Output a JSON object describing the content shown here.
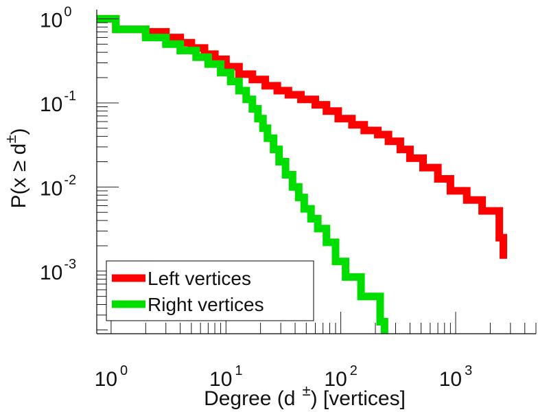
{
  "chart_data": {
    "type": "line",
    "x_scale": "log",
    "y_scale": "log",
    "xlim": [
      0.75,
      5000
    ],
    "ylim": [
      0.00018,
      1.15
    ],
    "xlabel_prefix": "Degree (d",
    "xlabel_sup": "±",
    "xlabel_suffix": ") [vertices]",
    "ylabel_prefix": "P(x ≥ d",
    "ylabel_sup": "±",
    "ylabel_suffix": ")",
    "x_ticks": [
      {
        "base": "10",
        "exp": "0",
        "value": 1
      },
      {
        "base": "10",
        "exp": "1",
        "value": 10
      },
      {
        "base": "10",
        "exp": "2",
        "value": 100
      },
      {
        "base": "10",
        "exp": "3",
        "value": 1000
      }
    ],
    "y_ticks": [
      {
        "base": "10",
        "exp": "0",
        "value": 1
      },
      {
        "base": "10",
        "exp": "-1",
        "value": 0.1
      },
      {
        "base": "10",
        "exp": "-2",
        "value": 0.01
      },
      {
        "base": "10",
        "exp": "-3",
        "value": 0.001
      }
    ],
    "legend_position": "bottom-left",
    "grid": false,
    "series": [
      {
        "name": "Left vertices",
        "color": "#ff0000",
        "points": [
          [
            0.75,
            1.0
          ],
          [
            1.1,
            1.0
          ],
          [
            1.1,
            0.75
          ],
          [
            2.0,
            0.75
          ],
          [
            2.0,
            0.7
          ],
          [
            3.0,
            0.7
          ],
          [
            3.0,
            0.6
          ],
          [
            4.0,
            0.6
          ],
          [
            4.0,
            0.52
          ],
          [
            5.0,
            0.52
          ],
          [
            5.0,
            0.45
          ],
          [
            6.5,
            0.45
          ],
          [
            6.5,
            0.38
          ],
          [
            8.0,
            0.38
          ],
          [
            8.0,
            0.33
          ],
          [
            10,
            0.33
          ],
          [
            10,
            0.27
          ],
          [
            13,
            0.27
          ],
          [
            13,
            0.22
          ],
          [
            17,
            0.22
          ],
          [
            17,
            0.19
          ],
          [
            22,
            0.19
          ],
          [
            22,
            0.16
          ],
          [
            28,
            0.16
          ],
          [
            28,
            0.14
          ],
          [
            35,
            0.14
          ],
          [
            35,
            0.125
          ],
          [
            45,
            0.125
          ],
          [
            45,
            0.11
          ],
          [
            60,
            0.11
          ],
          [
            60,
            0.095
          ],
          [
            75,
            0.095
          ],
          [
            75,
            0.08
          ],
          [
            95,
            0.08
          ],
          [
            95,
            0.065
          ],
          [
            125,
            0.065
          ],
          [
            125,
            0.055
          ],
          [
            160,
            0.055
          ],
          [
            160,
            0.047
          ],
          [
            210,
            0.047
          ],
          [
            210,
            0.042
          ],
          [
            260,
            0.042
          ],
          [
            260,
            0.035
          ],
          [
            330,
            0.035
          ],
          [
            330,
            0.028
          ],
          [
            400,
            0.028
          ],
          [
            400,
            0.022
          ],
          [
            520,
            0.022
          ],
          [
            520,
            0.017
          ],
          [
            700,
            0.017
          ],
          [
            700,
            0.0125
          ],
          [
            900,
            0.0125
          ],
          [
            900,
            0.009
          ],
          [
            1250,
            0.009
          ],
          [
            1250,
            0.007
          ],
          [
            1700,
            0.007
          ],
          [
            1700,
            0.0052
          ],
          [
            2400,
            0.0052
          ],
          [
            2400,
            0.0025
          ],
          [
            2600,
            0.0025
          ],
          [
            2600,
            0.0014
          ]
        ]
      },
      {
        "name": "Right vertices",
        "color": "#00dd00",
        "points": [
          [
            0.75,
            1.0
          ],
          [
            1.1,
            1.0
          ],
          [
            1.1,
            0.75
          ],
          [
            2.0,
            0.75
          ],
          [
            2.0,
            0.6
          ],
          [
            3.0,
            0.6
          ],
          [
            3.0,
            0.5
          ],
          [
            4.0,
            0.5
          ],
          [
            4.0,
            0.42
          ],
          [
            5.5,
            0.42
          ],
          [
            5.5,
            0.35
          ],
          [
            7.0,
            0.35
          ],
          [
            7.0,
            0.29
          ],
          [
            9.0,
            0.29
          ],
          [
            9.0,
            0.23
          ],
          [
            11,
            0.23
          ],
          [
            11,
            0.18
          ],
          [
            13,
            0.18
          ],
          [
            13,
            0.14
          ],
          [
            15,
            0.14
          ],
          [
            15,
            0.11
          ],
          [
            17,
            0.11
          ],
          [
            17,
            0.085
          ],
          [
            19,
            0.085
          ],
          [
            19,
            0.065
          ],
          [
            21,
            0.065
          ],
          [
            21,
            0.05
          ],
          [
            23,
            0.05
          ],
          [
            23,
            0.038
          ],
          [
            26,
            0.038
          ],
          [
            26,
            0.028
          ],
          [
            29,
            0.028
          ],
          [
            29,
            0.02
          ],
          [
            33,
            0.02
          ],
          [
            33,
            0.014
          ],
          [
            38,
            0.014
          ],
          [
            38,
            0.01
          ],
          [
            43,
            0.01
          ],
          [
            43,
            0.0075
          ],
          [
            48,
            0.0075
          ],
          [
            48,
            0.0055
          ],
          [
            55,
            0.0055
          ],
          [
            55,
            0.0042
          ],
          [
            63,
            0.0042
          ],
          [
            63,
            0.0032
          ],
          [
            75,
            0.0032
          ],
          [
            75,
            0.0022
          ],
          [
            90,
            0.0022
          ],
          [
            90,
            0.0013
          ],
          [
            110,
            0.0013
          ],
          [
            110,
            0.00085
          ],
          [
            150,
            0.00085
          ],
          [
            150,
            0.0005
          ],
          [
            220,
            0.0005
          ],
          [
            220,
            0.00025
          ],
          [
            240,
            0.00025
          ],
          [
            240,
            0.00018
          ]
        ]
      }
    ]
  }
}
